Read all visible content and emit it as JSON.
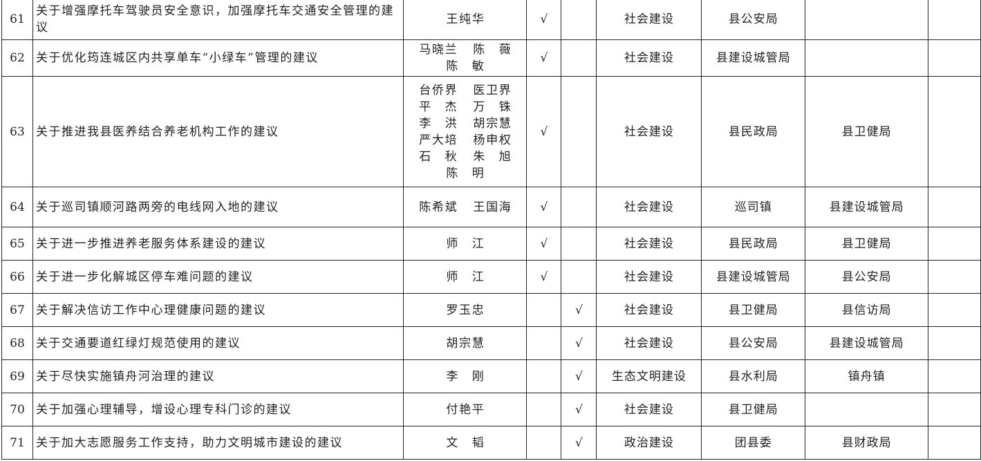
{
  "rows": [
    {
      "no": "61",
      "title": "关于增强摩托车驾驶员安全意识，加强摩托车交通安全管理的建议",
      "names": [
        "王纯华"
      ],
      "c1": "√",
      "c2": "",
      "category": "社会建设",
      "main": "县公安局",
      "assist": "",
      "extra": ""
    },
    {
      "no": "62",
      "title": "关于优化筠连城区内共享单车“小绿车”管理的建议",
      "names": [
        "马晓兰",
        "陈薇",
        "陈敏"
      ],
      "c1": "√",
      "c2": "",
      "category": "社会建设",
      "main": "县建设城管局",
      "assist": "",
      "extra": ""
    },
    {
      "no": "63",
      "title": "关于推进我县医养结合养老机构工作的建议",
      "names": [
        "台侨界",
        "医卫界",
        "平杰",
        "万铢",
        "李洪",
        "胡宗慧",
        "严大培",
        "杨申权",
        "石秋",
        "朱旭",
        "陈明"
      ],
      "c1": "√",
      "c2": "",
      "category": "社会建设",
      "main": "县民政局",
      "assist": "县卫健局",
      "extra": ""
    },
    {
      "no": "64",
      "title": "关于巡司镇顺河路两旁的电线网入地的建议",
      "names": [
        "陈希斌",
        "王国海"
      ],
      "c1": "√",
      "c2": "",
      "category": "社会建设",
      "main": "巡司镇",
      "assist": "县建设城管局",
      "extra": ""
    },
    {
      "no": "65",
      "title": "关于进一步推进养老服务体系建设的建议",
      "names": [
        "师江"
      ],
      "c1": "√",
      "c2": "",
      "category": "社会建设",
      "main": "县民政局",
      "assist": "县卫健局",
      "extra": ""
    },
    {
      "no": "66",
      "title": "关于进一步化解城区停车难问题的建议",
      "names": [
        "师江"
      ],
      "c1": "√",
      "c2": "",
      "category": "社会建设",
      "main": "县建设城管局",
      "assist": "县公安局",
      "extra": ""
    },
    {
      "no": "67",
      "title": "关于解决信访工作中心理健康问题的建议",
      "names": [
        "罗玉忠"
      ],
      "c1": "",
      "c2": "√",
      "category": "社会建设",
      "main": "县卫健局",
      "assist": "县信访局",
      "extra": ""
    },
    {
      "no": "68",
      "title": "关于交通要道红绿灯规范使用的建议",
      "names": [
        "胡宗慧"
      ],
      "c1": "",
      "c2": "√",
      "category": "社会建设",
      "main": "县公安局",
      "assist": "县建设城管局",
      "extra": ""
    },
    {
      "no": "69",
      "title": "关于尽快实施镇舟河治理的建议",
      "names": [
        "李刚"
      ],
      "c1": "",
      "c2": "√",
      "category": "生态文明建设",
      "main": "县水利局",
      "assist": "镇舟镇",
      "extra": ""
    },
    {
      "no": "70",
      "title": "关于加强心理辅导，增设心理专科门诊的建议",
      "names": [
        "付艳平"
      ],
      "c1": "",
      "c2": "√",
      "category": "社会建设",
      "main": "县卫健局",
      "assist": "",
      "extra": ""
    },
    {
      "no": "71",
      "title": "关于加大志愿服务工作支持，助力文明城市建设的建议",
      "names": [
        "文韬"
      ],
      "c1": "",
      "c2": "√",
      "category": "政治建设",
      "main": "团县委",
      "assist": "县财政局",
      "extra": ""
    }
  ]
}
